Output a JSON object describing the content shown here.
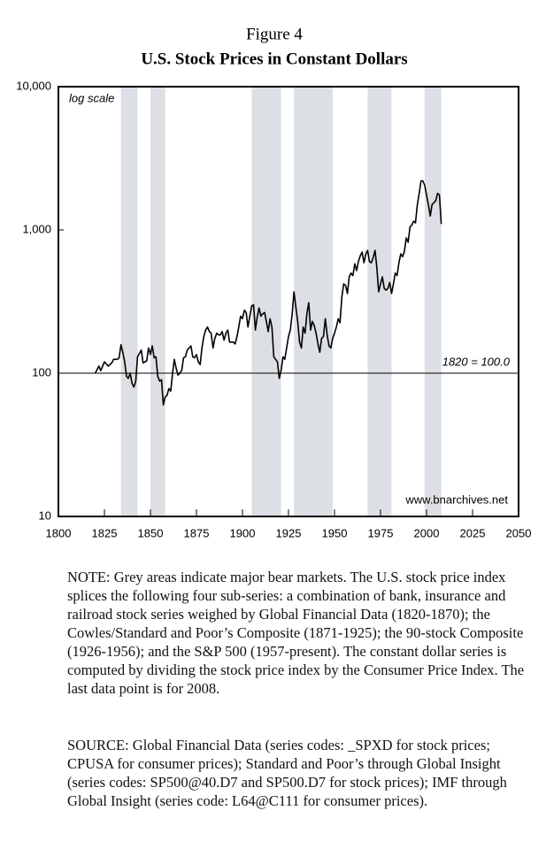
{
  "chart_data": {
    "type": "line",
    "title": "Figure 4",
    "subtitle": "U.S. Stock Prices in Constant Dollars",
    "log_scale": true,
    "color": "#000000",
    "band_color": "#dcdfe4",
    "xlim": [
      1800,
      2050
    ],
    "xticks": [
      1800,
      1825,
      1850,
      1875,
      1900,
      1925,
      1950,
      1975,
      2000,
      2025,
      2050
    ],
    "ylim": [
      10,
      10000
    ],
    "yticks": [
      10,
      100,
      {
        "value": 1000,
        "label": "1,000"
      },
      {
        "value": 10000,
        "label": "10,000"
      }
    ],
    "reference_line": {
      "value": 100,
      "label": "1820 = 100.0"
    },
    "annotations": [
      "log scale",
      "www.bnarchives.net"
    ],
    "shaded_periods": [
      [
        1834,
        1843
      ],
      [
        1850,
        1858
      ],
      [
        1905,
        1921
      ],
      [
        1928,
        1949
      ],
      [
        1968,
        1981
      ],
      [
        1999,
        2008
      ]
    ],
    "x": [
      1820,
      1822,
      1823,
      1825,
      1827,
      1829,
      1830,
      1832,
      1833,
      1834,
      1835,
      1836,
      1837,
      1838,
      1839,
      1840,
      1841,
      1842,
      1843,
      1845,
      1846,
      1848,
      1849,
      1850,
      1851,
      1852,
      1853,
      1854,
      1855,
      1856,
      1857,
      1858,
      1859,
      1860,
      1861,
      1862,
      1863,
      1864,
      1865,
      1866,
      1867,
      1868,
      1869,
      1870,
      1871,
      1872,
      1873,
      1874,
      1875,
      1876,
      1877,
      1878,
      1879,
      1880,
      1881,
      1882,
      1883,
      1884,
      1885,
      1886,
      1887,
      1888,
      1889,
      1890,
      1891,
      1892,
      1893,
      1894,
      1895,
      1896,
      1897,
      1898,
      1899,
      1900,
      1901,
      1902,
      1903,
      1904,
      1905,
      1906,
      1907,
      1908,
      1909,
      1910,
      1911,
      1912,
      1913,
      1914,
      1915,
      1916,
      1917,
      1918,
      1919,
      1920,
      1921,
      1922,
      1923,
      1924,
      1925,
      1926,
      1927,
      1928,
      1929,
      1930,
      1931,
      1932,
      1933,
      1934,
      1935,
      1936,
      1937,
      1938,
      1939,
      1940,
      1941,
      1942,
      1943,
      1944,
      1945,
      1946,
      1947,
      1948,
      1949,
      1950,
      1951,
      1952,
      1953,
      1954,
      1955,
      1956,
      1957,
      1958,
      1959,
      1960,
      1961,
      1962,
      1963,
      1964,
      1965,
      1966,
      1967,
      1968,
      1969,
      1970,
      1971,
      1972,
      1973,
      1974,
      1975,
      1976,
      1977,
      1978,
      1979,
      1980,
      1981,
      1982,
      1983,
      1984,
      1985,
      1986,
      1987,
      1988,
      1989,
      1990,
      1991,
      1992,
      1993,
      1994,
      1995,
      1996,
      1997,
      1998,
      1999,
      2000,
      2001,
      2002,
      2003,
      2004,
      2005,
      2006,
      2007,
      2008
    ],
    "values": [
      100,
      112,
      104,
      120,
      112,
      118,
      125,
      125,
      128,
      158,
      140,
      120,
      95,
      92,
      100,
      85,
      80,
      88,
      130,
      145,
      118,
      122,
      150,
      135,
      155,
      128,
      130,
      95,
      88,
      90,
      60,
      68,
      70,
      78,
      75,
      100,
      125,
      108,
      97,
      100,
      105,
      128,
      130,
      145,
      150,
      155,
      130,
      128,
      135,
      120,
      115,
      150,
      180,
      200,
      210,
      195,
      190,
      150,
      175,
      190,
      185,
      185,
      195,
      170,
      190,
      200,
      165,
      165,
      165,
      160,
      180,
      210,
      250,
      240,
      275,
      265,
      210,
      250,
      295,
      300,
      200,
      245,
      285,
      250,
      260,
      265,
      230,
      195,
      240,
      210,
      130,
      125,
      120,
      92,
      105,
      130,
      125,
      150,
      180,
      200,
      260,
      370,
      290,
      230,
      165,
      150,
      210,
      190,
      260,
      310,
      200,
      230,
      215,
      190,
      160,
      140,
      175,
      180,
      240,
      185,
      155,
      150,
      175,
      190,
      210,
      240,
      225,
      340,
      420,
      410,
      360,
      470,
      500,
      480,
      580,
      520,
      600,
      660,
      700,
      590,
      680,
      720,
      600,
      590,
      640,
      720,
      550,
      370,
      420,
      470,
      390,
      380,
      390,
      430,
      360,
      420,
      500,
      480,
      590,
      680,
      650,
      710,
      880,
      820,
      1050,
      1080,
      1150,
      1120,
      1500,
      1800,
      2200,
      2200,
      2050,
      1750,
      1500,
      1250,
      1500,
      1550,
      1600,
      1800,
      1750,
      1100
    ]
  },
  "note": "NOTE: Grey areas indicate major bear markets. The U.S. stock price index splices the following four sub-series: a combination of bank, insurance and railroad stock series weighed by Global Financial Data (1820-1870); the Cowles/Standard and Poor’s Composite (1871-1925); the 90-stock Composite (1926-1956); and the S&P 500 (1957-present). The constant dollar series is computed by dividing the stock price index by the Consumer Price Index. The last data point is for 2008.",
  "source": "SOURCE: Global Financial Data (series codes: _SPXD for stock prices; CPUSA for consumer prices); Standard and Poor’s through Global Insight (series codes: SP500@40.D7 and SP500.D7 for stock prices); IMF through Global Insight (series code: L64@C111 for consumer prices)."
}
